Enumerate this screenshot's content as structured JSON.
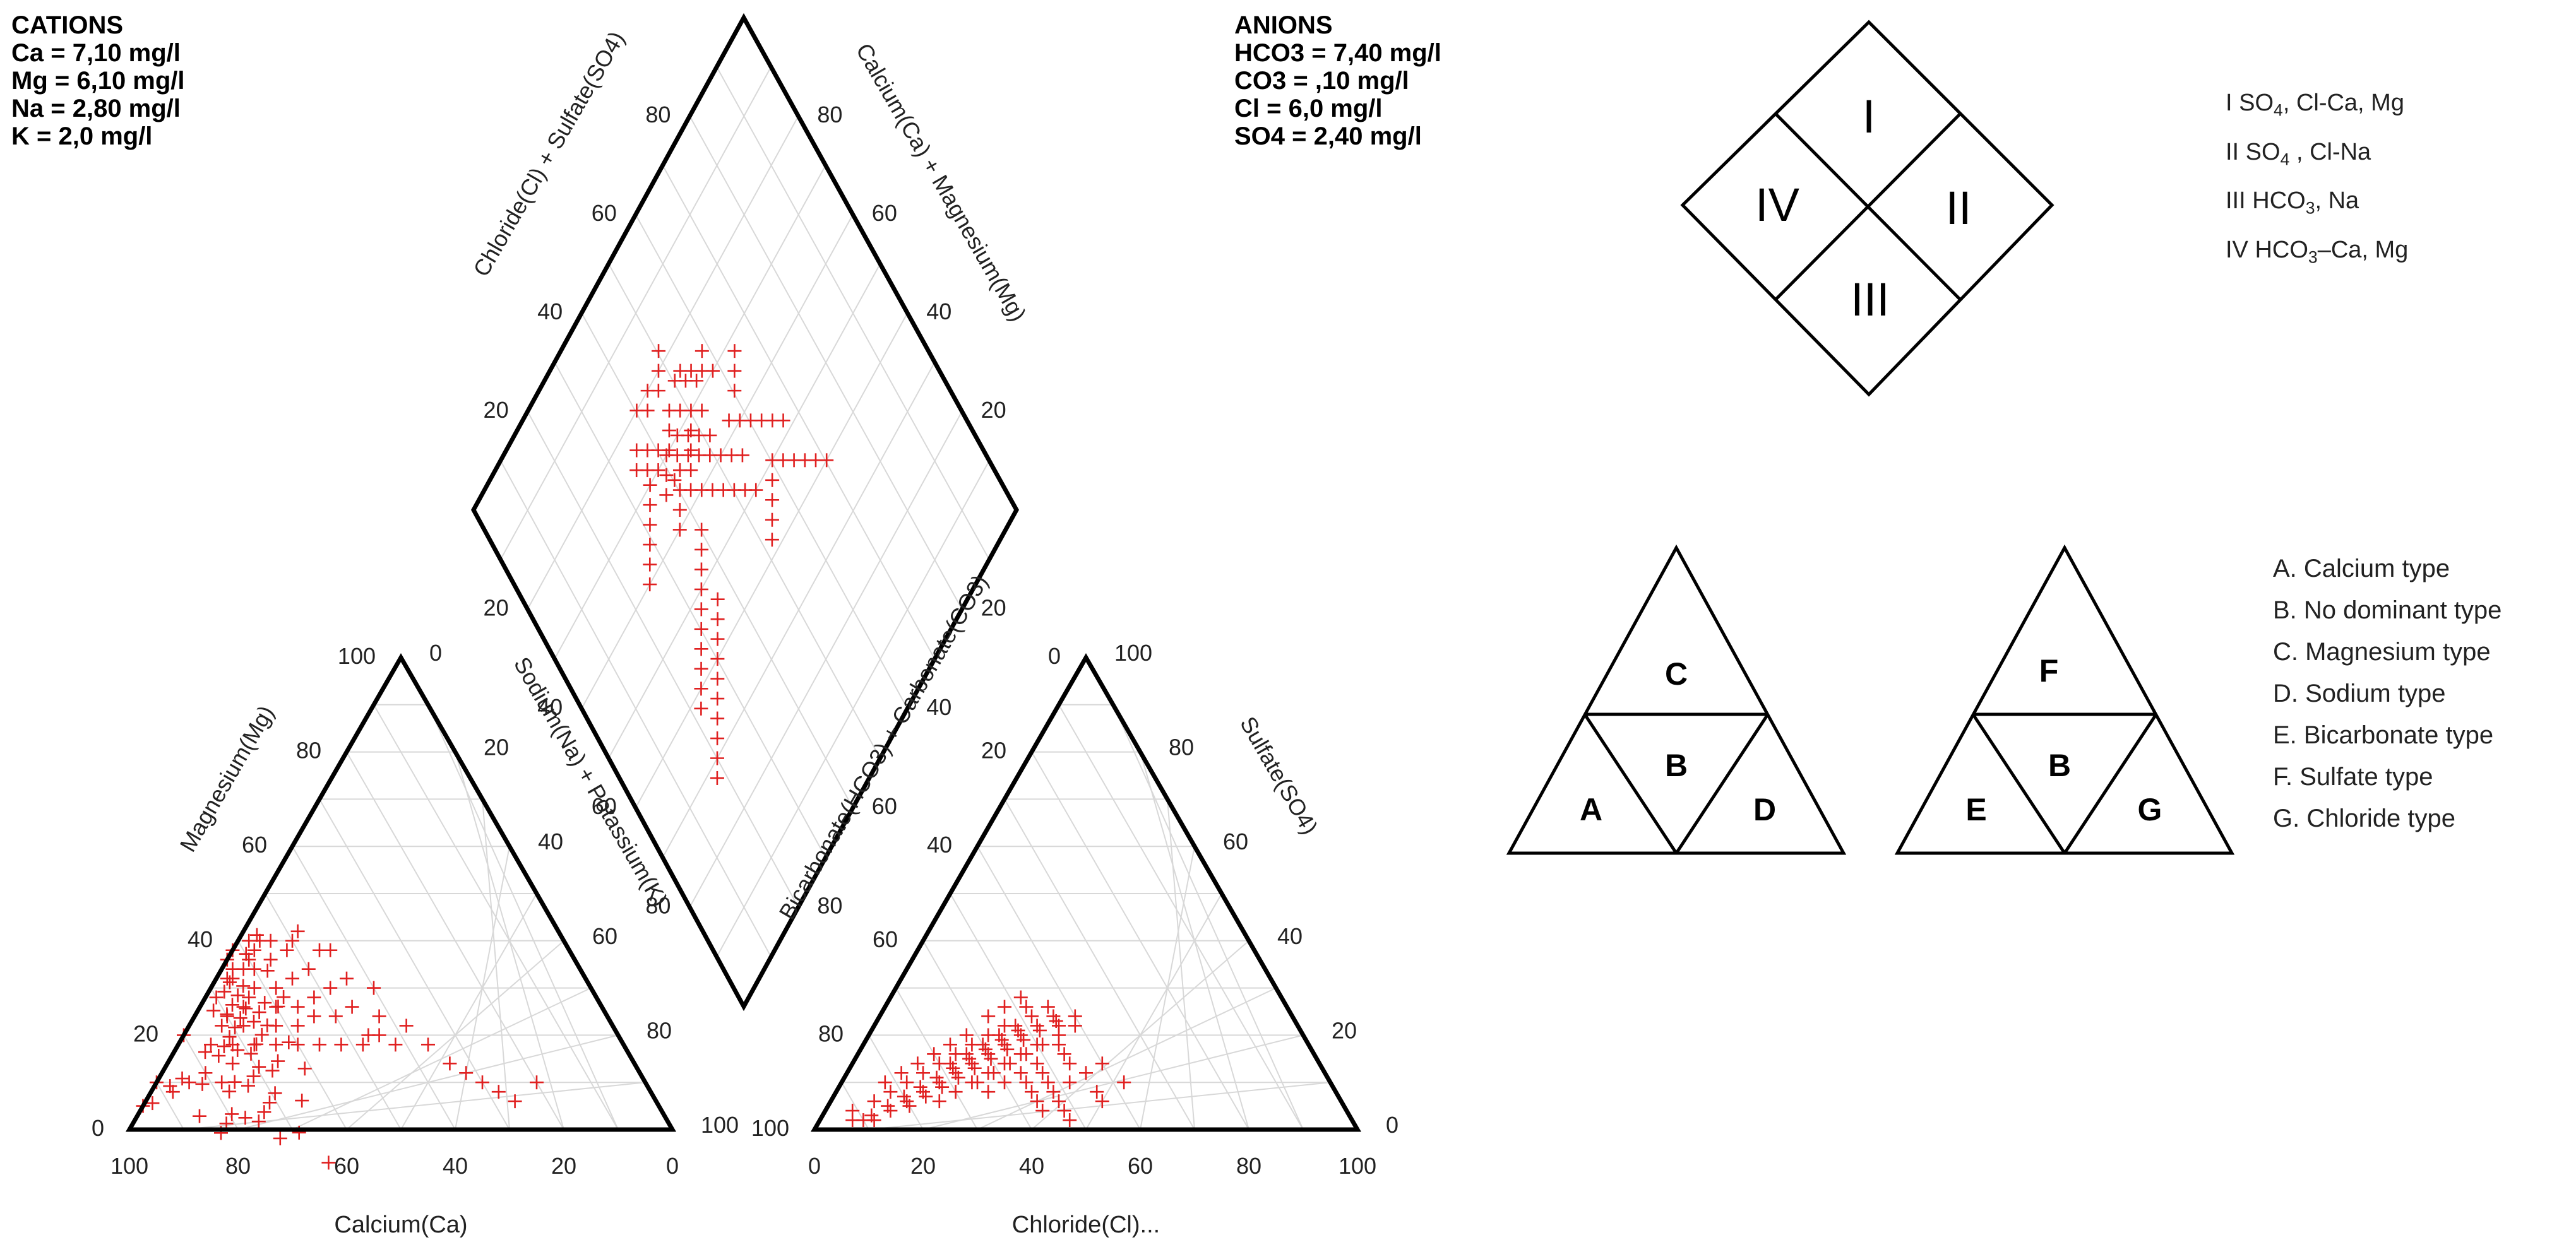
{
  "cations": {
    "title": "CATIONS",
    "lines": [
      "Ca = 7,10 mg/l",
      "Mg = 6,10 mg/l",
      "Na = 2,80 mg/l",
      "K = 2,0 mg/l"
    ]
  },
  "anions": {
    "title": "ANIONS",
    "lines": [
      "HCO3 = 7,40 mg/l",
      "CO3 = ,10 mg/l",
      "Cl = 6,0 mg/l",
      "SO4 = 2,40 mg/l"
    ]
  },
  "water_type_diamond": {
    "zones": [
      "I",
      "II",
      "III",
      "IV"
    ],
    "legend": [
      {
        "num": "I",
        "pre": " SO",
        "sub": "4",
        "post": ", Cl-Ca, Mg"
      },
      {
        "num": "II",
        "pre": " SO",
        "sub": "4",
        "post": " , Cl-Na"
      },
      {
        "num": "III",
        "pre": " HCO",
        "sub": "3",
        "post": ", Na"
      },
      {
        "num": "IV",
        "pre": " HCO",
        "sub": "3",
        "post": "–Ca, Mg"
      }
    ]
  },
  "cation_type_triangle": {
    "top": "C",
    "left": "A",
    "center": "B",
    "right": "D"
  },
  "anion_type_triangle": {
    "top": "F",
    "left": "E",
    "center": "B",
    "right": "G"
  },
  "type_legend": [
    "A. Calcium type",
    "B. No dominant type",
    "C. Magnesium type",
    "D. Sodium type",
    "E. Bicarbonate type",
    "F. Sulfate type",
    "G. Chloride type"
  ],
  "chart_data": {
    "type": "scatter",
    "subtype": "piper-trilinear",
    "marker": "+",
    "marker_color": "#e02020",
    "line_color": "#000000",
    "grid_color": "#d8d8d8",
    "ticks": [
      0,
      20,
      40,
      60,
      80,
      100
    ],
    "cation_triangle": {
      "bottom_axis_label": "Calcium(Ca)",
      "left_axis_label": "Magnesium(Mg)",
      "right_axis_label": "Sodium(Na) + Potassium(K)",
      "bottom_ticks": [
        "100",
        "80",
        "60",
        "40",
        "20",
        "0"
      ],
      "left_ticks": [
        "0",
        "20",
        "40",
        "60",
        "80",
        "100"
      ],
      "right_ticks": [
        "0",
        "20",
        "40",
        "60",
        "80",
        "100"
      ],
      "points_ca_mg": [
        [
          95,
          5
        ],
        [
          93,
          8
        ],
        [
          90,
          10
        ],
        [
          88,
          14
        ],
        [
          85,
          18
        ],
        [
          86,
          22
        ],
        [
          82,
          24
        ],
        [
          80,
          20
        ],
        [
          78,
          26
        ],
        [
          76,
          30
        ],
        [
          74,
          32
        ],
        [
          72,
          34
        ],
        [
          70,
          36
        ],
        [
          72,
          30
        ],
        [
          68,
          38
        ],
        [
          66,
          40
        ],
        [
          68,
          34
        ],
        [
          70,
          28
        ],
        [
          65,
          32
        ],
        [
          64,
          36
        ],
        [
          62,
          38
        ],
        [
          66,
          42
        ],
        [
          70,
          40
        ],
        [
          72,
          44
        ],
        [
          64,
          44
        ],
        [
          60,
          42
        ],
        [
          62,
          46
        ],
        [
          66,
          48
        ],
        [
          58,
          40
        ],
        [
          56,
          36
        ],
        [
          60,
          34
        ],
        [
          62,
          30
        ],
        [
          64,
          28
        ],
        [
          58,
          30
        ],
        [
          54,
          32
        ],
        [
          50,
          34
        ],
        [
          52,
          28
        ],
        [
          56,
          26
        ],
        [
          60,
          26
        ],
        [
          66,
          26
        ],
        [
          70,
          24
        ],
        [
          72,
          22
        ],
        [
          68,
          22
        ],
        [
          62,
          22
        ],
        [
          58,
          22
        ],
        [
          54,
          24
        ],
        [
          50,
          24
        ],
        [
          46,
          26
        ],
        [
          48,
          30
        ],
        [
          44,
          32
        ],
        [
          40,
          30
        ],
        [
          42,
          24
        ],
        [
          38,
          22
        ],
        [
          36,
          18
        ],
        [
          34,
          14
        ],
        [
          30,
          10
        ],
        [
          32,
          12
        ],
        [
          28,
          8
        ],
        [
          26,
          6
        ],
        [
          20,
          10
        ],
        [
          70,
          52
        ],
        [
          66,
          54
        ],
        [
          62,
          56
        ],
        [
          68,
          60
        ],
        [
          60,
          50
        ],
        [
          58,
          48
        ],
        [
          56,
          46
        ],
        [
          74,
          46
        ],
        [
          76,
          40
        ],
        [
          78,
          36
        ],
        [
          80,
          32
        ],
        [
          82,
          30
        ],
        [
          84,
          28
        ],
        [
          76,
          18
        ],
        [
          74,
          14
        ],
        [
          80,
          12
        ],
        [
          84,
          10
        ],
        [
          88,
          8
        ],
        [
          78,
          10
        ],
        [
          72,
          18
        ],
        [
          68,
          18
        ],
        [
          64,
          18
        ],
        [
          60,
          18
        ],
        [
          56,
          18
        ],
        [
          52,
          18
        ],
        [
          48,
          18
        ],
        [
          46,
          20
        ],
        [
          44,
          20
        ],
        [
          42,
          18
        ],
        [
          66,
          36
        ],
        [
          68,
          42
        ],
        [
          70,
          46
        ],
        [
          62,
          52
        ],
        [
          58,
          52
        ],
        [
          54,
          40
        ],
        [
          52,
          38
        ],
        [
          50,
          40
        ],
        [
          48,
          42
        ],
        [
          46,
          38
        ],
        [
          44,
          38
        ],
        [
          64,
          40
        ],
        [
          66,
          38
        ],
        [
          68,
          36
        ],
        [
          70,
          34
        ],
        [
          72,
          36
        ],
        [
          74,
          38
        ],
        [
          76,
          34
        ],
        [
          78,
          32
        ],
        [
          66,
          32
        ],
        [
          64,
          34
        ],
        [
          62,
          34
        ],
        [
          60,
          36
        ],
        [
          58,
          38
        ],
        [
          56,
          40
        ],
        [
          66,
          44
        ],
        [
          64,
          46
        ],
        [
          68,
          46
        ],
        [
          70,
          42
        ],
        [
          72,
          40
        ],
        [
          74,
          42
        ]
      ]
    },
    "anion_triangle": {
      "bottom_axis_label": "Chloride(Cl)...",
      "left_axis_label": "Bicarbonate(HCO3) + Carbonate(CO3)",
      "right_axis_label": "Sulfate(SO4)",
      "bottom_ticks": [
        "0",
        "20",
        "40",
        "60",
        "80",
        "100"
      ],
      "left_ticks": [
        "100",
        "80",
        "60",
        "40",
        "20",
        "0"
      ],
      "right_ticks": [
        "100",
        "80",
        "60",
        "40",
        "20",
        "0"
      ],
      "points_cl_so4": [
        [
          5,
          4
        ],
        [
          8,
          6
        ],
        [
          10,
          8
        ],
        [
          12,
          10
        ],
        [
          14,
          12
        ],
        [
          16,
          14
        ],
        [
          18,
          16
        ],
        [
          20,
          18
        ],
        [
          22,
          20
        ],
        [
          24,
          22
        ],
        [
          15,
          5
        ],
        [
          17,
          7
        ],
        [
          19,
          9
        ],
        [
          21,
          11
        ],
        [
          23,
          13
        ],
        [
          25,
          15
        ],
        [
          27,
          17
        ],
        [
          29,
          19
        ],
        [
          31,
          21
        ],
        [
          33,
          23
        ],
        [
          20,
          12
        ],
        [
          22,
          14
        ],
        [
          24,
          16
        ],
        [
          26,
          18
        ],
        [
          28,
          20
        ],
        [
          30,
          22
        ],
        [
          18,
          10
        ],
        [
          16,
          8
        ],
        [
          14,
          6
        ],
        [
          12,
          4
        ],
        [
          10,
          2
        ],
        [
          8,
          2
        ],
        [
          6,
          2
        ],
        [
          25,
          10
        ],
        [
          27,
          12
        ],
        [
          29,
          14
        ],
        [
          31,
          16
        ],
        [
          33,
          18
        ],
        [
          35,
          20
        ],
        [
          37,
          22
        ],
        [
          20,
          6
        ],
        [
          22,
          8
        ],
        [
          24,
          10
        ],
        [
          26,
          12
        ],
        [
          28,
          14
        ],
        [
          30,
          16
        ],
        [
          32,
          18
        ],
        [
          34,
          14
        ],
        [
          36,
          12
        ],
        [
          38,
          10
        ],
        [
          40,
          8
        ],
        [
          42,
          10
        ],
        [
          44,
          12
        ],
        [
          46,
          14
        ],
        [
          48,
          8
        ],
        [
          50,
          6
        ],
        [
          52,
          10
        ],
        [
          40,
          14
        ],
        [
          38,
          16
        ],
        [
          36,
          18
        ],
        [
          18,
          20
        ],
        [
          20,
          24
        ],
        [
          22,
          26
        ],
        [
          24,
          28
        ],
        [
          26,
          26
        ],
        [
          28,
          24
        ],
        [
          30,
          26
        ],
        [
          32,
          24
        ],
        [
          34,
          22
        ],
        [
          36,
          24
        ],
        [
          14,
          16
        ],
        [
          12,
          14
        ],
        [
          10,
          12
        ],
        [
          8,
          10
        ],
        [
          16,
          18
        ],
        [
          18,
          14
        ],
        [
          20,
          16
        ],
        [
          22,
          18
        ],
        [
          24,
          20
        ],
        [
          26,
          22
        ],
        [
          28,
          8
        ],
        [
          30,
          10
        ],
        [
          32,
          12
        ],
        [
          34,
          10
        ],
        [
          36,
          8
        ],
        [
          38,
          6
        ],
        [
          40,
          4
        ],
        [
          42,
          6
        ],
        [
          44,
          4
        ],
        [
          46,
          2
        ],
        [
          23,
          17
        ],
        [
          25,
          19
        ],
        [
          27,
          21
        ],
        [
          21,
          15
        ],
        [
          19,
          13
        ],
        [
          17,
          11
        ],
        [
          15,
          9
        ],
        [
          13,
          7
        ],
        [
          11,
          5
        ],
        [
          9,
          3
        ]
      ]
    },
    "diamond": {
      "upper_left_axis_label": "Chloride(Cl) + Sulfate(SO4)",
      "upper_right_axis_label": "Calcium(Ca) + Magnesium(Mg)",
      "upper_left_ticks": [
        "80",
        "60",
        "40",
        "20"
      ],
      "upper_right_ticks": [
        "80",
        "60",
        "40",
        "20"
      ],
      "lower_left_ticks": [
        "20",
        "40",
        "60",
        "80"
      ],
      "lower_right_ticks": [
        "20",
        "40",
        "60",
        "80"
      ],
      "points_clso4_camg": [
        [
          42,
          70
        ],
        [
          44,
          72
        ],
        [
          46,
          74
        ],
        [
          48,
          72
        ],
        [
          50,
          70
        ],
        [
          52,
          68
        ],
        [
          40,
          72
        ],
        [
          38,
          74
        ],
        [
          36,
          76
        ],
        [
          34,
          74
        ],
        [
          45,
          66
        ],
        [
          47,
          64
        ],
        [
          49,
          62
        ],
        [
          51,
          60
        ],
        [
          53,
          58
        ],
        [
          55,
          56
        ],
        [
          43,
          68
        ],
        [
          41,
          70
        ],
        [
          39,
          68
        ],
        [
          37,
          66
        ],
        [
          44,
          60
        ],
        [
          46,
          58
        ],
        [
          48,
          56
        ],
        [
          50,
          54
        ],
        [
          52,
          52
        ],
        [
          54,
          50
        ],
        [
          42,
          62
        ],
        [
          40,
          64
        ],
        [
          38,
          62
        ],
        [
          36,
          60
        ],
        [
          56,
          62
        ],
        [
          58,
          60
        ],
        [
          60,
          58
        ],
        [
          62,
          56
        ],
        [
          64,
          54
        ],
        [
          66,
          52
        ],
        [
          60,
          64
        ],
        [
          62,
          66
        ],
        [
          64,
          68
        ],
        [
          58,
          70
        ],
        [
          40,
          56
        ],
        [
          38,
          54
        ],
        [
          36,
          52
        ],
        [
          34,
          50
        ],
        [
          32,
          48
        ],
        [
          30,
          46
        ],
        [
          28,
          44
        ],
        [
          26,
          42
        ],
        [
          24,
          40
        ],
        [
          22,
          38
        ],
        [
          46,
          78
        ],
        [
          48,
          80
        ],
        [
          50,
          82
        ],
        [
          44,
          80
        ],
        [
          42,
          78
        ],
        [
          40,
          80
        ],
        [
          52,
          76
        ],
        [
          54,
          74
        ],
        [
          56,
          72
        ],
        [
          58,
          74
        ],
        [
          35,
          70
        ],
        [
          33,
          68
        ],
        [
          31,
          66
        ],
        [
          29,
          64
        ],
        [
          27,
          62
        ],
        [
          25,
          60
        ],
        [
          45,
          70
        ],
        [
          47,
          68
        ],
        [
          49,
          66
        ],
        [
          51,
          64
        ],
        [
          60,
          50
        ],
        [
          62,
          48
        ],
        [
          64,
          46
        ],
        [
          66,
          44
        ],
        [
          68,
          42
        ],
        [
          70,
          40
        ],
        [
          58,
          48
        ],
        [
          56,
          46
        ],
        [
          54,
          44
        ],
        [
          52,
          42
        ],
        [
          20,
          30
        ],
        [
          18,
          28
        ],
        [
          24,
          34
        ],
        [
          26,
          36
        ],
        [
          30,
          40
        ],
        [
          32,
          42
        ],
        [
          34,
          44
        ],
        [
          28,
          38
        ],
        [
          22,
          32
        ],
        [
          36,
          46
        ],
        [
          44,
          64
        ],
        [
          46,
          66
        ],
        [
          48,
          68
        ],
        [
          42,
          66
        ],
        [
          40,
          66
        ],
        [
          38,
          70
        ],
        [
          36,
          72
        ],
        [
          50,
          76
        ],
        [
          52,
          74
        ],
        [
          54,
          72
        ]
      ]
    }
  }
}
